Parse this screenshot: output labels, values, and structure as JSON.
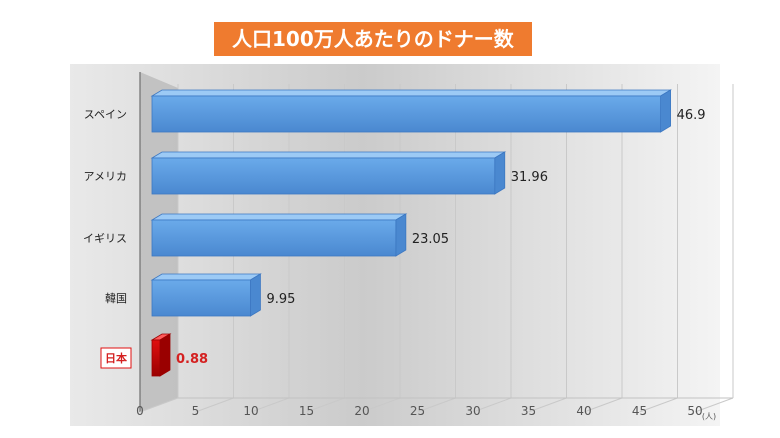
{
  "title": "人口100万人あたりのドナー数",
  "chart_data": {
    "type": "bar",
    "orientation": "horizontal",
    "title": "人口100万人あたりのドナー数",
    "categories": [
      "スペイン",
      "アメリカ",
      "イギリス",
      "韓国",
      "日本"
    ],
    "values": [
      46.9,
      31.96,
      23.05,
      9.95,
      0.88
    ],
    "value_labels": [
      "46.9",
      "31.96",
      "23.05",
      "9.95",
      "0.88"
    ],
    "highlight_category": "日本",
    "xlim": [
      0,
      50
    ],
    "x_ticks": [
      0,
      5,
      10,
      15,
      20,
      25,
      30,
      35,
      40,
      45,
      50
    ],
    "x_unit": "(人)",
    "grid": true,
    "legend": "none",
    "colors": {
      "bar": "#6aaaea",
      "bar_top": "#9ccaf5",
      "bar_front_dark": "#4a88d0",
      "bar_edge": "#3d78c2",
      "highlight": "#e01010",
      "highlight_dark": "#9a0000",
      "highlight_text": "#d42020",
      "title_bg": "#ef7b2f",
      "text": "#222222"
    }
  }
}
